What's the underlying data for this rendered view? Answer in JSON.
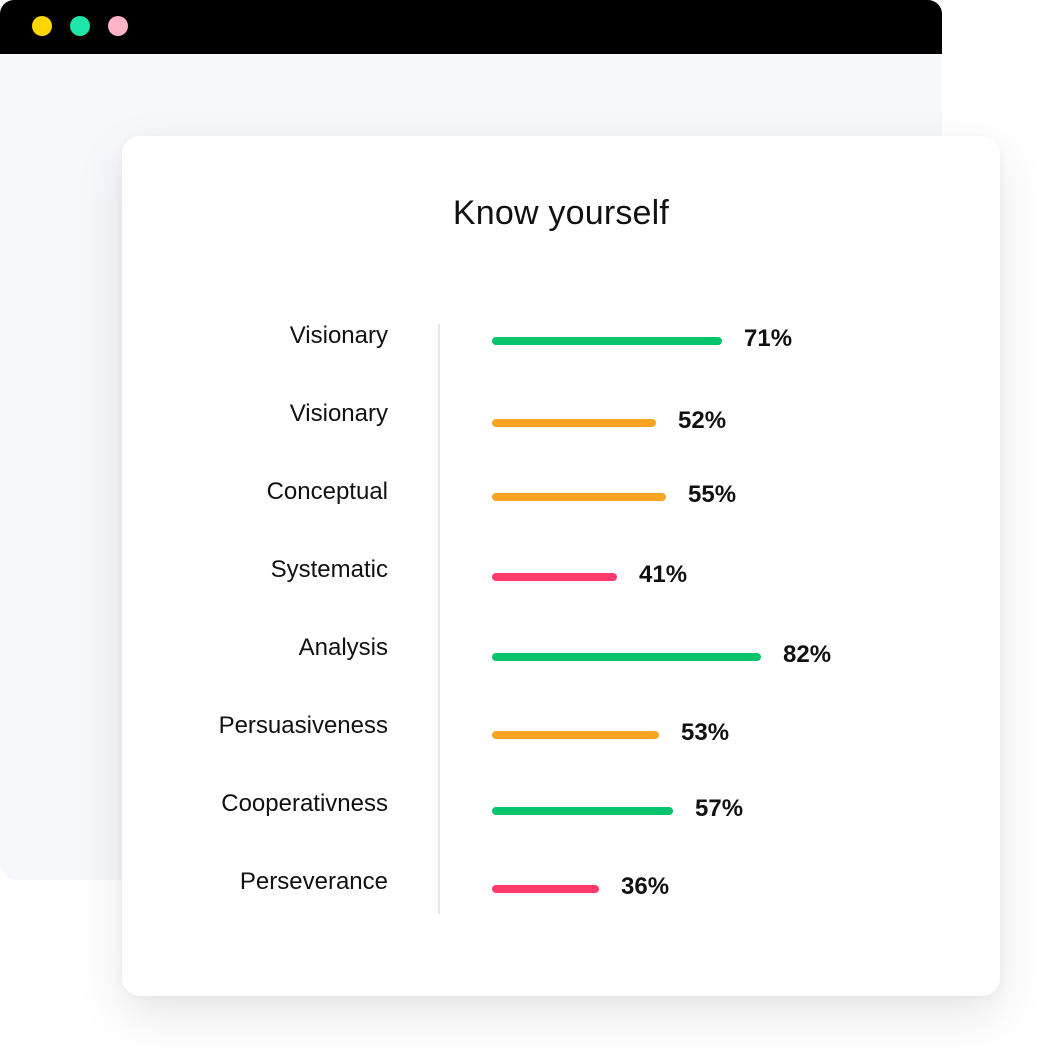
{
  "window": {
    "controls": [
      {
        "name": "minimize",
        "color": "#ffd500"
      },
      {
        "name": "maximize",
        "color": "#1ee5a8"
      },
      {
        "name": "close",
        "color": "#ffb3c6"
      }
    ]
  },
  "card": {
    "title": "Know yourself",
    "items": [
      {
        "label": "Visionary",
        "percent": 71,
        "value_text": "71%",
        "color": "#05c46b"
      },
      {
        "label": "Visionary",
        "percent": 52,
        "value_text": "52%",
        "color": "#f7a423"
      },
      {
        "label": "Conceptual",
        "percent": 55,
        "value_text": "55%",
        "color": "#f7a423"
      },
      {
        "label": "Systematic",
        "percent": 41,
        "value_text": "41%",
        "color": "#ff3b6b"
      },
      {
        "label": "Analysis",
        "percent": 82,
        "value_text": "82%",
        "color": "#05c46b"
      },
      {
        "label": "Persuasiveness",
        "percent": 53,
        "value_text": "53%",
        "color": "#f7a423"
      },
      {
        "label": "Cooperativness",
        "percent": 57,
        "value_text": "57%",
        "color": "#05c46b"
      },
      {
        "label": "Perseverance",
        "percent": 36,
        "value_text": "36%",
        "color": "#ff3b6b"
      }
    ]
  }
}
